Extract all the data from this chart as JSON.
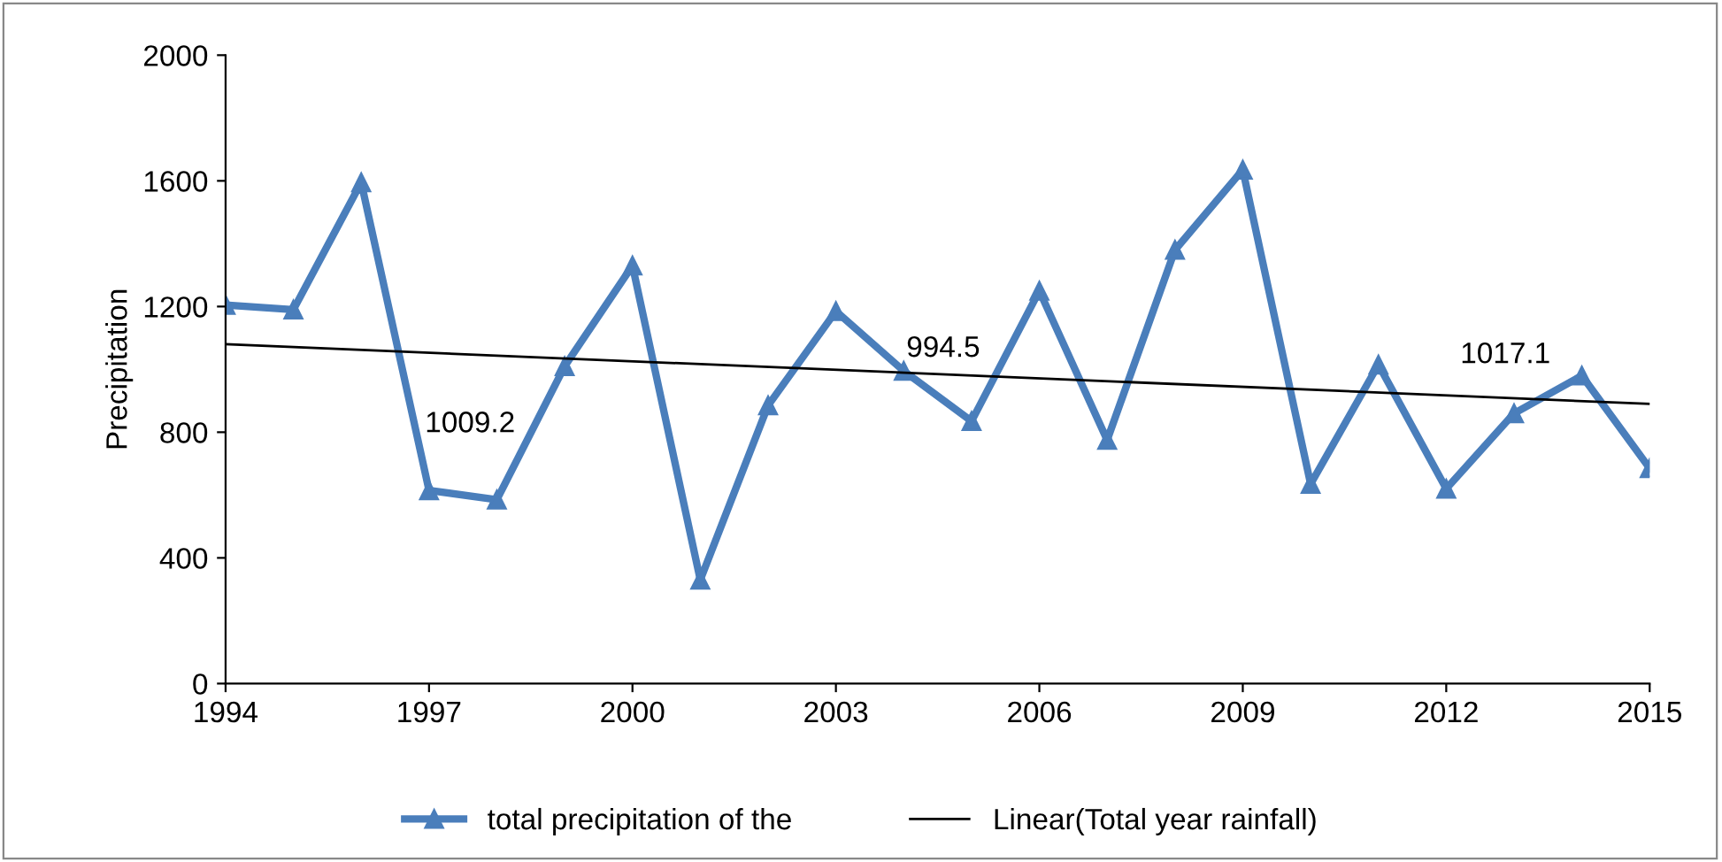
{
  "chart_data": {
    "type": "line",
    "ylabel": "Precipitation",
    "x": [
      1994,
      1995,
      1996,
      1997,
      1998,
      1999,
      2000,
      2001,
      2002,
      2003,
      2004,
      2005,
      2006,
      2007,
      2008,
      2009,
      2010,
      2011,
      2012,
      2013,
      2014,
      2015
    ],
    "series": [
      {
        "name": "total precipitation of the",
        "color": "#4a7ebb",
        "marker": "triangle",
        "values": [
          1205,
          1190,
          1595,
          615,
          585,
          1010,
          1330,
          330,
          885,
          1185,
          995,
          835,
          1250,
          775,
          1380,
          1635,
          635,
          1015,
          620,
          860,
          980,
          685
        ]
      },
      {
        "name": "Linear(Total year rainfall)",
        "color": "#000000",
        "marker": "none",
        "x": [
          1994,
          2015
        ],
        "values": [
          1080,
          890
        ]
      }
    ],
    "xlim": [
      1994,
      2015
    ],
    "xticks": [
      1994,
      1997,
      2000,
      2003,
      2006,
      2009,
      2012,
      2015
    ],
    "ylim": [
      0,
      2000
    ],
    "yticks": [
      0,
      400,
      800,
      1200,
      1600,
      2000
    ],
    "grid": false,
    "legend": "bottom",
    "annotations": [
      "1009.2",
      "994.5",
      "1017.1"
    ]
  }
}
